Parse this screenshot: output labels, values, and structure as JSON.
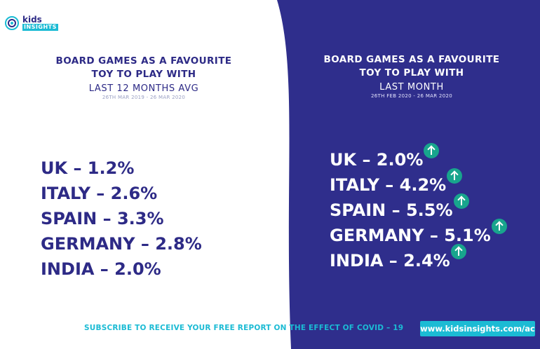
{
  "logo": {
    "line1": "kids",
    "line2": "INSIGHTS"
  },
  "left": {
    "title": "BOARD GAMES AS A FAVOURITE",
    "title2": "TOY TO PLAY WITH",
    "period": "LAST 12 MONTHS AVG",
    "dates": "26TH MAR 2019 - 26 MAR 2020",
    "items": [
      "UK – 1.2%",
      "ITALY – 2.6%",
      "SPAIN – 3.3%",
      "GERMANY – 2.8%",
      "INDIA – 2.0%"
    ]
  },
  "right": {
    "title": "BOARD GAMES AS A FAVOURITE",
    "title2": "TOY TO PLAY WITH",
    "period": "LAST MONTH",
    "dates": "26TH FEB 2020 - 26 MAR 2020",
    "items": [
      "UK – 2.0%",
      "ITALY – 4.2%",
      "SPAIN – 5.5%",
      "GERMANY – 5.1%",
      "INDIA – 2.4%"
    ]
  },
  "footer": {
    "text": "SUBSCRIBE TO RECEIVE YOUR FREE REPORT ON THE EFFECT OF COVID – 19",
    "link": "www.kidsinsights.com/ac"
  },
  "colors": {
    "navy": "#2d2a86",
    "panel": "#2f2e8c",
    "cyan": "#1bbbd4",
    "green": "#18a58d"
  }
}
